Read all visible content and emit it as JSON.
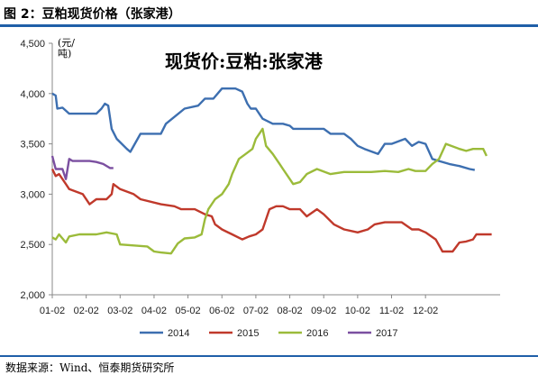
{
  "figure_title": "图 2：豆粕现货价格（张家港）",
  "source": "数据来源：Wind、恒泰期货研究所",
  "chart_data": {
    "type": "line",
    "title": "现货价:豆粕:张家港",
    "ylabel": "(元/吨)",
    "xlabel": "",
    "ylim": [
      2000,
      4500
    ],
    "yticks": [
      2000,
      2500,
      3000,
      3500,
      4000,
      4500
    ],
    "ytick_labels": [
      "2,000",
      "2,500",
      "3,000",
      "3,500",
      "4,000",
      "4,500"
    ],
    "xticks": [
      "01-02",
      "02-02",
      "03-02",
      "04-02",
      "05-02",
      "06-02",
      "07-02",
      "08-02",
      "09-02",
      "10-02",
      "11-02",
      "12-02"
    ],
    "grid": false,
    "legend": "bottom",
    "series": [
      {
        "name": "2014",
        "color": "#3d6fb0",
        "points": [
          [
            0,
            4000
          ],
          [
            0.1,
            3980
          ],
          [
            0.15,
            3850
          ],
          [
            0.3,
            3860
          ],
          [
            0.5,
            3800
          ],
          [
            1.3,
            3800
          ],
          [
            1.45,
            3850
          ],
          [
            1.55,
            3900
          ],
          [
            1.65,
            3880
          ],
          [
            1.75,
            3650
          ],
          [
            1.9,
            3550
          ],
          [
            2.2,
            3450
          ],
          [
            2.3,
            3420
          ],
          [
            2.6,
            3600
          ],
          [
            3.2,
            3600
          ],
          [
            3.35,
            3700
          ],
          [
            3.9,
            3850
          ],
          [
            4.3,
            3880
          ],
          [
            4.5,
            3950
          ],
          [
            4.75,
            3950
          ],
          [
            5.0,
            4050
          ],
          [
            5.4,
            4050
          ],
          [
            5.6,
            4020
          ],
          [
            5.75,
            3900
          ],
          [
            5.85,
            3850
          ],
          [
            6.0,
            3850
          ],
          [
            6.2,
            3750
          ],
          [
            6.5,
            3700
          ],
          [
            6.8,
            3700
          ],
          [
            7.0,
            3680
          ],
          [
            7.1,
            3650
          ],
          [
            8.0,
            3650
          ],
          [
            8.2,
            3600
          ],
          [
            8.6,
            3600
          ],
          [
            8.8,
            3550
          ],
          [
            9.0,
            3480
          ],
          [
            9.2,
            3450
          ],
          [
            9.6,
            3400
          ],
          [
            9.8,
            3500
          ],
          [
            10.0,
            3500
          ],
          [
            10.4,
            3550
          ],
          [
            10.6,
            3480
          ],
          [
            10.8,
            3520
          ],
          [
            11.0,
            3500
          ],
          [
            11.2,
            3350
          ],
          [
            11.4,
            3330
          ],
          [
            11.7,
            3300
          ],
          [
            12.0,
            3280
          ],
          [
            12.3,
            3250
          ],
          [
            12.45,
            3240
          ]
        ]
      },
      {
        "name": "2015",
        "color": "#c0392b",
        "points": [
          [
            0,
            3250
          ],
          [
            0.1,
            3180
          ],
          [
            0.2,
            3200
          ],
          [
            0.4,
            3100
          ],
          [
            0.5,
            3050
          ],
          [
            0.9,
            3000
          ],
          [
            1.1,
            2900
          ],
          [
            1.3,
            2950
          ],
          [
            1.6,
            2950
          ],
          [
            1.75,
            3000
          ],
          [
            1.8,
            3100
          ],
          [
            2.0,
            3050
          ],
          [
            2.4,
            3000
          ],
          [
            2.6,
            2950
          ],
          [
            3.2,
            2900
          ],
          [
            3.6,
            2880
          ],
          [
            3.8,
            2850
          ],
          [
            4.2,
            2850
          ],
          [
            4.5,
            2800
          ],
          [
            4.7,
            2780
          ],
          [
            4.8,
            2700
          ],
          [
            5.0,
            2650
          ],
          [
            5.3,
            2600
          ],
          [
            5.6,
            2550
          ],
          [
            5.8,
            2580
          ],
          [
            6.0,
            2600
          ],
          [
            6.2,
            2650
          ],
          [
            6.4,
            2850
          ],
          [
            6.6,
            2880
          ],
          [
            6.8,
            2880
          ],
          [
            7.0,
            2850
          ],
          [
            7.3,
            2850
          ],
          [
            7.5,
            2780
          ],
          [
            7.8,
            2850
          ],
          [
            8.0,
            2800
          ],
          [
            8.3,
            2700
          ],
          [
            8.6,
            2650
          ],
          [
            9.0,
            2620
          ],
          [
            9.3,
            2650
          ],
          [
            9.5,
            2700
          ],
          [
            9.8,
            2720
          ],
          [
            10.3,
            2720
          ],
          [
            10.6,
            2650
          ],
          [
            10.8,
            2650
          ],
          [
            11.0,
            2620
          ],
          [
            11.3,
            2550
          ],
          [
            11.5,
            2430
          ],
          [
            11.8,
            2430
          ],
          [
            12.0,
            2520
          ],
          [
            12.2,
            2530
          ],
          [
            12.4,
            2550
          ],
          [
            12.5,
            2600
          ],
          [
            12.8,
            2600
          ],
          [
            12.95,
            2600
          ]
        ]
      },
      {
        "name": "2016",
        "color": "#9bbb3a",
        "points": [
          [
            0,
            2570
          ],
          [
            0.1,
            2550
          ],
          [
            0.2,
            2600
          ],
          [
            0.4,
            2520
          ],
          [
            0.5,
            2580
          ],
          [
            0.8,
            2600
          ],
          [
            1.3,
            2600
          ],
          [
            1.6,
            2620
          ],
          [
            1.9,
            2600
          ],
          [
            2.0,
            2500
          ],
          [
            2.4,
            2490
          ],
          [
            2.8,
            2480
          ],
          [
            3.0,
            2430
          ],
          [
            3.2,
            2420
          ],
          [
            3.5,
            2410
          ],
          [
            3.7,
            2510
          ],
          [
            3.9,
            2560
          ],
          [
            4.2,
            2570
          ],
          [
            4.4,
            2600
          ],
          [
            4.5,
            2750
          ],
          [
            4.6,
            2850
          ],
          [
            4.8,
            2950
          ],
          [
            5.0,
            3000
          ],
          [
            5.2,
            3100
          ],
          [
            5.3,
            3200
          ],
          [
            5.5,
            3350
          ],
          [
            5.7,
            3400
          ],
          [
            5.9,
            3450
          ],
          [
            6.0,
            3550
          ],
          [
            6.1,
            3600
          ],
          [
            6.2,
            3650
          ],
          [
            6.3,
            3480
          ],
          [
            6.5,
            3400
          ],
          [
            6.7,
            3300
          ],
          [
            6.8,
            3250
          ],
          [
            7.0,
            3150
          ],
          [
            7.1,
            3100
          ],
          [
            7.3,
            3120
          ],
          [
            7.5,
            3200
          ],
          [
            7.8,
            3250
          ],
          [
            8.2,
            3200
          ],
          [
            8.6,
            3220
          ],
          [
            9.0,
            3220
          ],
          [
            9.4,
            3220
          ],
          [
            9.8,
            3230
          ],
          [
            10.2,
            3220
          ],
          [
            10.5,
            3250
          ],
          [
            10.7,
            3230
          ],
          [
            11.0,
            3230
          ],
          [
            11.2,
            3300
          ],
          [
            11.4,
            3350
          ],
          [
            11.6,
            3500
          ],
          [
            12.0,
            3450
          ],
          [
            12.2,
            3430
          ],
          [
            12.4,
            3450
          ],
          [
            12.7,
            3450
          ],
          [
            12.8,
            3380
          ]
        ]
      },
      {
        "name": "2017",
        "color": "#7b4fa0",
        "points": [
          [
            0,
            3380
          ],
          [
            0.1,
            3250
          ],
          [
            0.3,
            3250
          ],
          [
            0.4,
            3150
          ],
          [
            0.5,
            3350
          ],
          [
            0.6,
            3330
          ],
          [
            0.9,
            3330
          ],
          [
            1.1,
            3330
          ],
          [
            1.3,
            3320
          ],
          [
            1.5,
            3300
          ],
          [
            1.7,
            3260
          ],
          [
            1.8,
            3260
          ]
        ]
      }
    ]
  }
}
